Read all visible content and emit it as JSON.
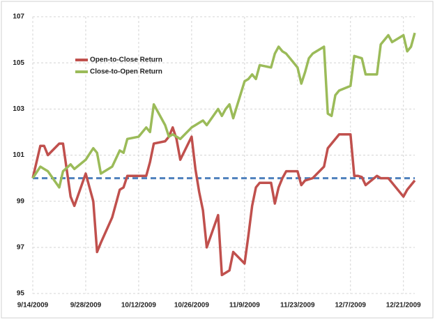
{
  "chart_data": {
    "type": "line",
    "x": [
      "2009-09-14",
      "2009-09-16",
      "2009-09-17",
      "2009-09-18",
      "2009-09-21",
      "2009-09-22",
      "2009-09-24",
      "2009-09-25",
      "2009-09-28",
      "2009-09-30",
      "2009-10-01",
      "2009-10-02",
      "2009-10-05",
      "2009-10-07",
      "2009-10-08",
      "2009-10-09",
      "2009-10-12",
      "2009-10-13",
      "2009-10-14",
      "2009-10-15",
      "2009-10-16",
      "2009-10-19",
      "2009-10-20",
      "2009-10-21",
      "2009-10-22",
      "2009-10-23",
      "2009-10-26",
      "2009-10-27",
      "2009-10-28",
      "2009-10-29",
      "2009-10-30",
      "2009-11-02",
      "2009-11-03",
      "2009-11-04",
      "2009-11-05",
      "2009-11-06",
      "2009-11-09",
      "2009-11-10",
      "2009-11-11",
      "2009-11-12",
      "2009-11-13",
      "2009-11-16",
      "2009-11-17",
      "2009-11-18",
      "2009-11-19",
      "2009-11-20",
      "2009-11-23",
      "2009-11-24",
      "2009-11-25",
      "2009-11-26",
      "2009-11-27",
      "2009-11-30",
      "2009-12-01",
      "2009-12-02",
      "2009-12-03",
      "2009-12-04",
      "2009-12-07",
      "2009-12-08",
      "2009-12-09",
      "2009-12-10",
      "2009-12-11",
      "2009-12-14",
      "2009-12-15",
      "2009-12-16",
      "2009-12-17",
      "2009-12-18",
      "2009-12-21",
      "2009-12-22",
      "2009-12-23",
      "2009-12-24"
    ],
    "series": [
      {
        "name": "Open-to-Close Return",
        "color": "#c0504d",
        "values": [
          100.0,
          101.4,
          101.4,
          101.0,
          101.5,
          101.5,
          99.2,
          98.8,
          100.2,
          99.0,
          96.8,
          97.2,
          98.3,
          99.5,
          99.6,
          100.1,
          100.1,
          100.1,
          100.1,
          100.7,
          101.5,
          101.6,
          101.8,
          102.2,
          101.7,
          100.8,
          101.8,
          100.4,
          99.4,
          98.6,
          97.0,
          98.4,
          95.8,
          95.9,
          96.0,
          96.8,
          96.3,
          97.5,
          98.8,
          99.6,
          99.8,
          99.8,
          98.9,
          99.6,
          100.0,
          100.3,
          100.3,
          99.7,
          99.9,
          99.95,
          100.0,
          100.5,
          101.3,
          101.5,
          101.7,
          101.9,
          101.9,
          100.1,
          100.1,
          100.05,
          99.7,
          100.1,
          100.0,
          100.0,
          100.0,
          99.8,
          99.2,
          99.5,
          99.7,
          99.9
        ]
      },
      {
        "name": "Close-to-Open Return",
        "color": "#9bbb59",
        "values": [
          100.0,
          100.5,
          100.4,
          100.3,
          99.6,
          100.3,
          100.6,
          100.4,
          100.8,
          101.3,
          101.1,
          100.2,
          100.5,
          101.2,
          101.1,
          101.7,
          101.8,
          102.0,
          102.2,
          102.0,
          103.2,
          102.3,
          101.8,
          101.9,
          101.8,
          101.7,
          102.2,
          102.3,
          102.4,
          102.5,
          102.3,
          103.0,
          102.7,
          103.0,
          103.2,
          102.6,
          104.2,
          104.3,
          104.5,
          104.3,
          104.9,
          104.8,
          105.4,
          105.7,
          105.5,
          105.4,
          104.8,
          104.1,
          104.6,
          105.2,
          105.4,
          105.7,
          102.8,
          102.7,
          103.6,
          103.8,
          104.0,
          105.3,
          105.25,
          105.2,
          104.5,
          104.5,
          105.8,
          106.0,
          106.2,
          105.9,
          106.2,
          105.5,
          105.7,
          106.3
        ]
      }
    ],
    "xlim": [
      "2009-09-14",
      "2009-12-24"
    ],
    "xticks": [
      {
        "value": "2009-09-14",
        "label": "9/14/2009"
      },
      {
        "value": "2009-09-28",
        "label": "9/28/2009"
      },
      {
        "value": "2009-10-12",
        "label": "10/12/2009"
      },
      {
        "value": "2009-10-26",
        "label": "10/26/2009"
      },
      {
        "value": "2009-11-09",
        "label": "11/9/2009"
      },
      {
        "value": "2009-11-23",
        "label": "11/23/2009"
      },
      {
        "value": "2009-12-07",
        "label": "12/7/2009"
      },
      {
        "value": "2009-12-21",
        "label": "12/21/2009"
      }
    ],
    "ylim": [
      95,
      107
    ],
    "yticks": [
      95,
      97,
      99,
      101,
      103,
      105,
      107
    ],
    "grid": true,
    "legend": "upper left",
    "reference_line": {
      "value": 100,
      "color": "#4f81bd"
    }
  }
}
